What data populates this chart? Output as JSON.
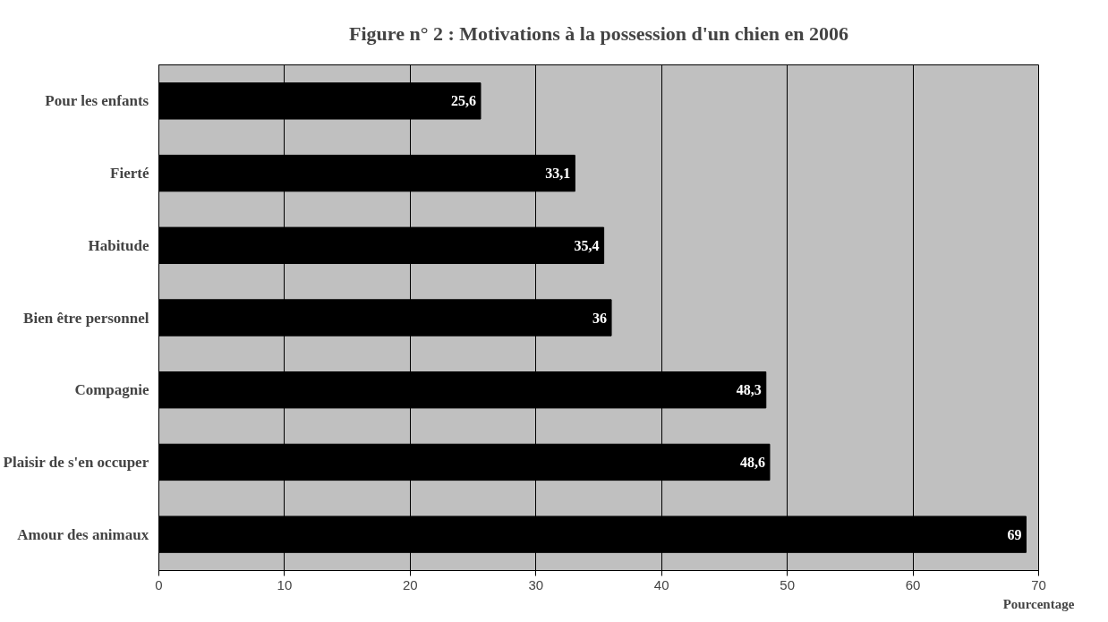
{
  "chart_data": {
    "type": "bar",
    "orientation": "horizontal",
    "title": "Figure n° 2 : Motivations à la possession d'un chien en 2006",
    "xlabel": "Pourcentage",
    "categories": [
      "Pour les enfants",
      "Fierté",
      "Habitude",
      "Bien être personnel",
      "Compagnie",
      "Plaisir de s'en occuper",
      "Amour des animaux"
    ],
    "values": [
      25.6,
      33.1,
      35.4,
      36,
      48.3,
      48.6,
      69
    ],
    "value_labels": [
      "25,6",
      "33,1",
      "35,4",
      "36",
      "48,3",
      "48,6",
      "69"
    ],
    "color": "#000000",
    "xlim": [
      0,
      70
    ],
    "xticks": [
      0,
      10,
      20,
      30,
      40,
      50,
      60,
      70
    ],
    "grid": "x"
  }
}
